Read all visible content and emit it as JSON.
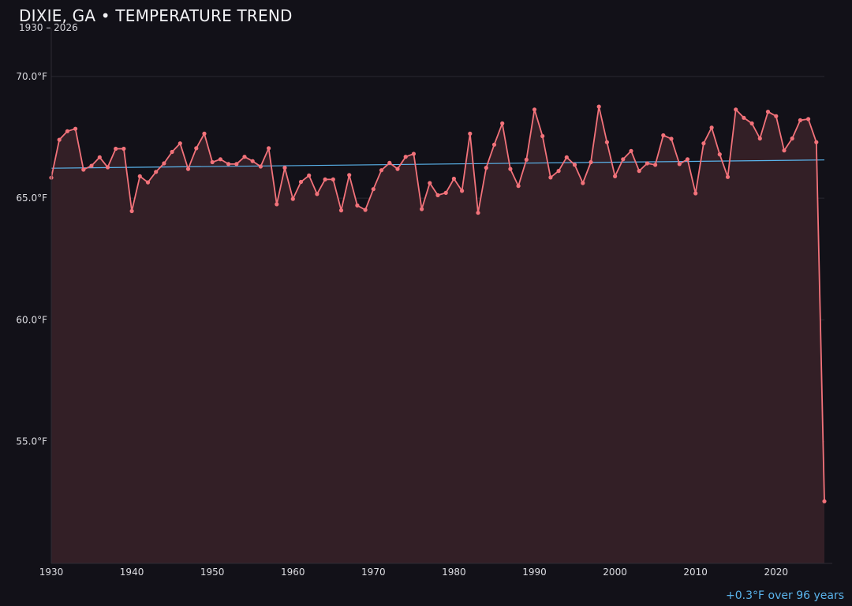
{
  "chart_data": {
    "type": "line",
    "title": "DIXIE, GA • TEMPERATURE TREND",
    "subtitle": "1930 – 2026",
    "annotation": "+0.3°F over 96 years",
    "xlim": [
      1930,
      2026
    ],
    "ylim": [
      50.0,
      71.0
    ],
    "x_ticks": [
      1930,
      1940,
      1950,
      1960,
      1970,
      1980,
      1990,
      2000,
      2010,
      2020
    ],
    "y_ticks": [
      {
        "value": 55,
        "label": "55.0°F"
      },
      {
        "value": 60,
        "label": "60.0°F"
      },
      {
        "value": 65,
        "label": "65.0°F"
      },
      {
        "value": 70,
        "label": "70.0°F"
      }
    ],
    "grid": true,
    "colors": {
      "background": "#121118",
      "line": "#f2727a",
      "area_fill": "#331f26",
      "trend": "#5ab4ec",
      "grid": "#2a2830"
    },
    "series": [
      {
        "x": [
          1930,
          1931,
          1932,
          1933,
          1934,
          1935,
          1936,
          1937,
          1938,
          1939,
          1940,
          1941,
          1942,
          1943,
          1944,
          1945,
          1946,
          1947,
          1948,
          1949,
          1950,
          1951,
          1952,
          1953,
          1954,
          1955,
          1956,
          1957,
          1958,
          1959,
          1960,
          1961,
          1962,
          1963,
          1964,
          1965,
          1966,
          1967,
          1968,
          1969,
          1970,
          1971,
          1972,
          1973,
          1974,
          1975,
          1976,
          1977,
          1978,
          1979,
          1980,
          1981,
          1982,
          1983,
          1984,
          1985,
          1986,
          1987,
          1988,
          1989,
          1990,
          1991,
          1992,
          1993,
          1994,
          1995,
          1996,
          1997,
          1998,
          1999,
          2000,
          2001,
          2002,
          2003,
          2004,
          2005,
          2006,
          2007,
          2008,
          2009,
          2010,
          2011,
          2012,
          2013,
          2014,
          2015,
          2016,
          2017,
          2018,
          2019,
          2020,
          2021,
          2022,
          2023,
          2024,
          2025,
          2026
        ],
        "values": [
          65.84,
          67.4,
          67.75,
          67.85,
          66.17,
          66.33,
          66.68,
          66.27,
          67.03,
          67.03,
          64.47,
          65.9,
          65.65,
          66.08,
          66.43,
          66.9,
          67.25,
          66.2,
          67.05,
          67.65,
          66.48,
          66.6,
          66.4,
          66.4,
          66.7,
          66.52,
          66.3,
          67.05,
          64.75,
          66.25,
          64.97,
          65.67,
          65.93,
          65.17,
          65.77,
          65.77,
          64.5,
          65.95,
          64.7,
          64.52,
          65.37,
          66.15,
          66.45,
          66.2,
          66.7,
          66.82,
          64.55,
          65.62,
          65.12,
          65.22,
          65.8,
          65.3,
          67.65,
          64.4,
          66.25,
          67.2,
          68.07,
          66.2,
          65.5,
          66.58,
          68.64,
          67.55,
          65.85,
          66.12,
          66.68,
          66.37,
          65.62,
          66.48,
          68.76,
          67.3,
          65.9,
          66.6,
          66.94,
          66.12,
          66.43,
          66.37,
          67.58,
          67.44,
          66.4,
          66.6,
          65.2,
          67.25,
          67.9,
          66.8,
          65.87,
          68.64,
          68.3,
          68.07,
          67.45,
          68.55,
          68.37,
          66.96,
          67.45,
          68.2,
          68.25,
          67.3,
          52.55
        ]
      },
      {
        "name": "trend",
        "x": [
          1930,
          2026
        ],
        "values": [
          66.23,
          66.57
        ]
      }
    ]
  }
}
